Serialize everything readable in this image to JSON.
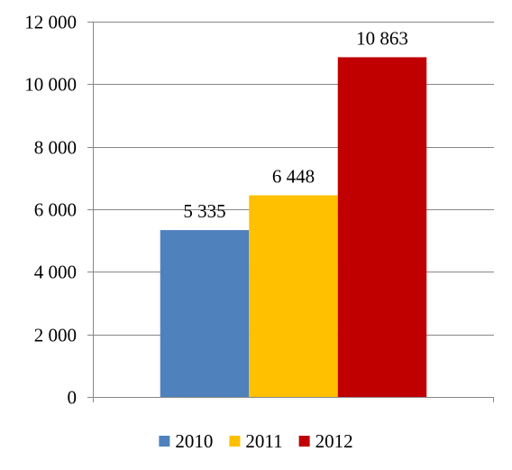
{
  "chart_data": {
    "type": "bar",
    "title": "",
    "xlabel": "",
    "ylabel": "",
    "ylim": [
      0,
      12000
    ],
    "ytick_step": 2000,
    "yticks": [
      "0",
      "2 000",
      "4 000",
      "6 000",
      "8 000",
      "10 000",
      "12 000"
    ],
    "grid": true,
    "legend_position": "bottom",
    "series": [
      {
        "name": "2010",
        "value": 5335,
        "label": "5 335",
        "color": "#4F81BD"
      },
      {
        "name": "2011",
        "value": 6448,
        "label": "6 448",
        "color": "#FFC000"
      },
      {
        "name": "2012",
        "value": 10863,
        "label": "10 863",
        "color": "#C00000"
      }
    ]
  }
}
